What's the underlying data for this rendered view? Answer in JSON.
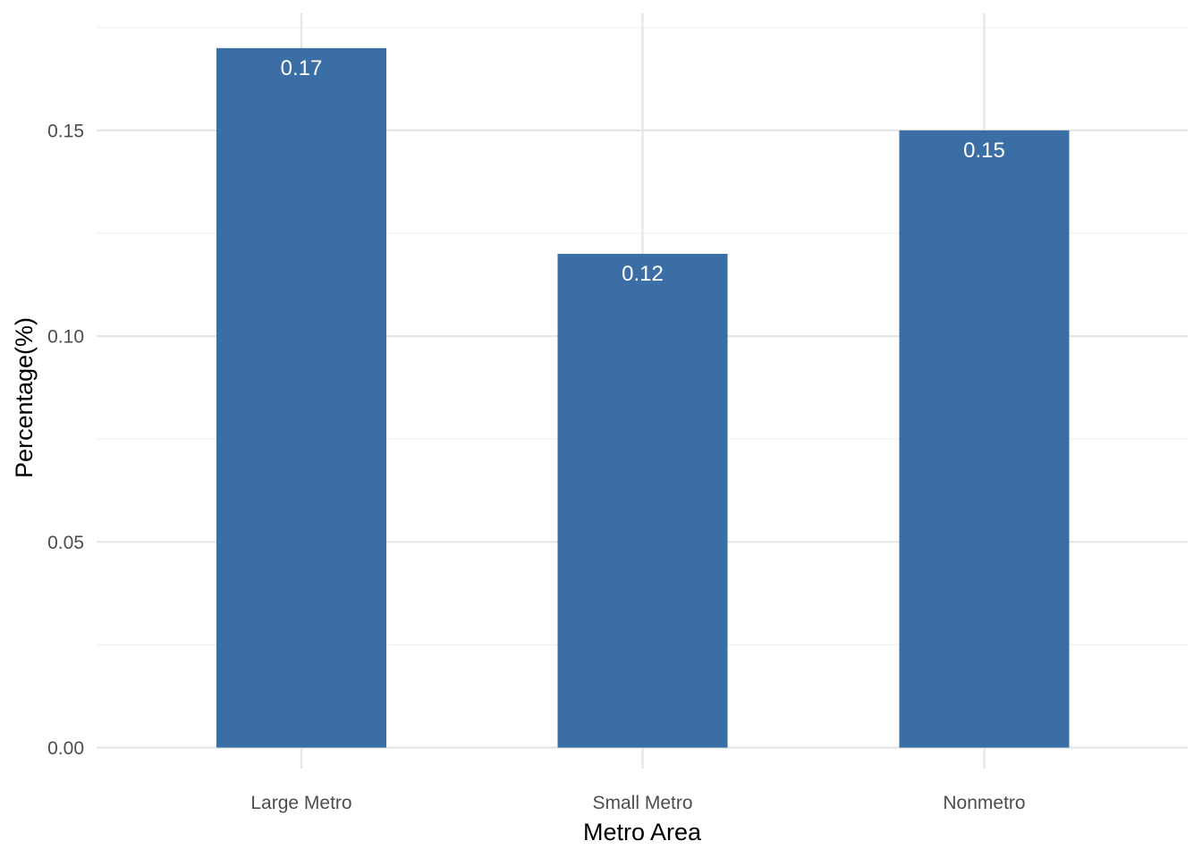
{
  "chart_data": {
    "type": "bar",
    "categories": [
      "Large Metro",
      "Small Metro",
      "Nonmetro"
    ],
    "values": [
      0.17,
      0.12,
      0.15
    ],
    "data_labels": [
      "0.17",
      "0.12",
      "0.15"
    ],
    "xlabel": "Metro Area",
    "ylabel": "Percentage(%)",
    "ylim": [
      0,
      0.17
    ],
    "yticks": [
      0.0,
      0.05,
      0.1,
      0.15
    ],
    "ytick_labels": [
      "0.00",
      "0.05",
      "0.10",
      "0.15"
    ],
    "y_minor_ticks": [
      0.025,
      0.075,
      0.125,
      0.175
    ],
    "grid": true,
    "bar_color": "#3a6ea5",
    "theme": "minimal"
  }
}
